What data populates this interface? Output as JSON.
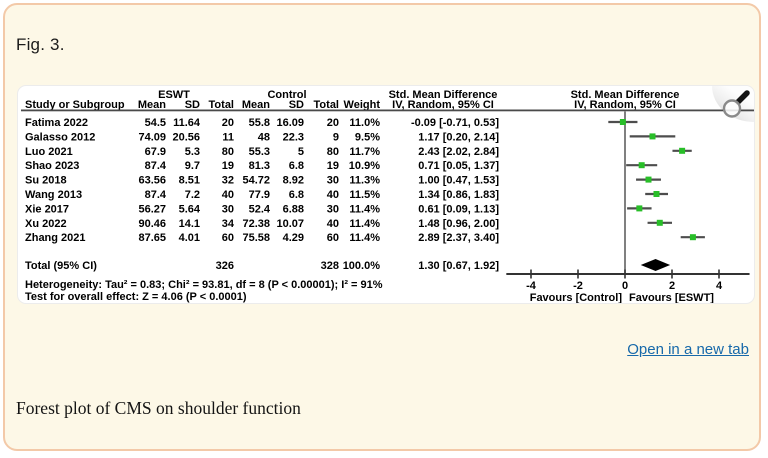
{
  "page": {
    "figure_label": "Fig. 3.",
    "open_link": "Open in a new tab",
    "caption": "Forest plot of CMS on shoulder function"
  },
  "colors": {
    "page_bg": "#fdf8e7",
    "page_border": "#f3c9a8",
    "link_blue": "#1769aa",
    "marker_green": "#28be28",
    "ci_line": "#4d4d4d",
    "diamond": "#000000",
    "rule": "#4a4a4a",
    "axis": "#333333"
  },
  "chart_data": {
    "type": "forest",
    "effect_title": "Std. Mean Difference",
    "effect_method": "IV, Random, 95% CI",
    "groups": {
      "experimental": "ESWT",
      "control": "Control"
    },
    "columns": [
      "Study or Subgroup",
      "Mean",
      "SD",
      "Total",
      "Mean",
      "SD",
      "Total",
      "Weight",
      "IV, Random, 95% CI",
      "IV, Random, 95% CI"
    ],
    "studies": [
      {
        "study": "Fatima 2022",
        "e_mean": "54.5",
        "e_sd": "11.64",
        "e_total": "20",
        "c_mean": "55.8",
        "c_sd": "16.09",
        "c_total": "20",
        "weight": "11.0%",
        "ci_text": "-0.09 [-0.71, 0.53]",
        "est": -0.09,
        "lo": -0.71,
        "hi": 0.53
      },
      {
        "study": "Galasso 2012",
        "e_mean": "74.09",
        "e_sd": "20.56",
        "e_total": "11",
        "c_mean": "48",
        "c_sd": "22.3",
        "c_total": "9",
        "weight": "9.5%",
        "ci_text": "1.17 [0.20, 2.14]",
        "est": 1.17,
        "lo": 0.2,
        "hi": 2.14
      },
      {
        "study": "Luo 2021",
        "e_mean": "67.9",
        "e_sd": "5.3",
        "e_total": "80",
        "c_mean": "55.3",
        "c_sd": "5",
        "c_total": "80",
        "weight": "11.7%",
        "ci_text": "2.43 [2.02, 2.84]",
        "est": 2.43,
        "lo": 2.02,
        "hi": 2.84
      },
      {
        "study": "Shao 2023",
        "e_mean": "87.4",
        "e_sd": "9.7",
        "e_total": "19",
        "c_mean": "81.3",
        "c_sd": "6.8",
        "c_total": "19",
        "weight": "10.9%",
        "ci_text": "0.71 [0.05, 1.37]",
        "est": 0.71,
        "lo": 0.05,
        "hi": 1.37
      },
      {
        "study": "Su 2018",
        "e_mean": "63.56",
        "e_sd": "8.51",
        "e_total": "32",
        "c_mean": "54.72",
        "c_sd": "8.92",
        "c_total": "30",
        "weight": "11.3%",
        "ci_text": "1.00 [0.47, 1.53]",
        "est": 1.0,
        "lo": 0.47,
        "hi": 1.53
      },
      {
        "study": "Wang 2013",
        "e_mean": "87.4",
        "e_sd": "7.2",
        "e_total": "40",
        "c_mean": "77.9",
        "c_sd": "6.8",
        "c_total": "40",
        "weight": "11.5%",
        "ci_text": "1.34 [0.86, 1.83]",
        "est": 1.34,
        "lo": 0.86,
        "hi": 1.83
      },
      {
        "study": "Xie 2017",
        "e_mean": "56.27",
        "e_sd": "5.64",
        "e_total": "30",
        "c_mean": "52.4",
        "c_sd": "6.88",
        "c_total": "30",
        "weight": "11.4%",
        "ci_text": "0.61 [0.09, 1.13]",
        "est": 0.61,
        "lo": 0.09,
        "hi": 1.13
      },
      {
        "study": "Xu 2022",
        "e_mean": "90.46",
        "e_sd": "14.1",
        "e_total": "34",
        "c_mean": "72.38",
        "c_sd": "10.07",
        "c_total": "40",
        "weight": "11.4%",
        "ci_text": "1.48 [0.96, 2.00]",
        "est": 1.48,
        "lo": 0.96,
        "hi": 2.0
      },
      {
        "study": "Zhang 2021",
        "e_mean": "87.65",
        "e_sd": "4.01",
        "e_total": "60",
        "c_mean": "75.58",
        "c_sd": "4.29",
        "c_total": "60",
        "weight": "11.4%",
        "ci_text": "2.89 [2.37, 3.40]",
        "est": 2.89,
        "lo": 2.37,
        "hi": 3.4
      }
    ],
    "total": {
      "label": "Total (95% CI)",
      "e_total": "326",
      "c_total": "328",
      "weight": "100.0%",
      "ci_text": "1.30 [0.67, 1.92]",
      "est": 1.3,
      "lo": 0.67,
      "hi": 1.92
    },
    "footnotes": {
      "heterogeneity": "Heterogeneity: Tau² = 0.83; Chi² = 93.81, df = 8 (P < 0.00001); I² = 91%",
      "overall_effect": "Test for overall effect: Z = 4.06 (P < 0.0001)"
    },
    "axis": {
      "ticks": [
        -4,
        -2,
        0,
        2,
        4
      ],
      "min": -5.05,
      "max": 5.3,
      "favours_left": "Favours [Control]",
      "favours_right": "Favours [ESWT]"
    }
  }
}
